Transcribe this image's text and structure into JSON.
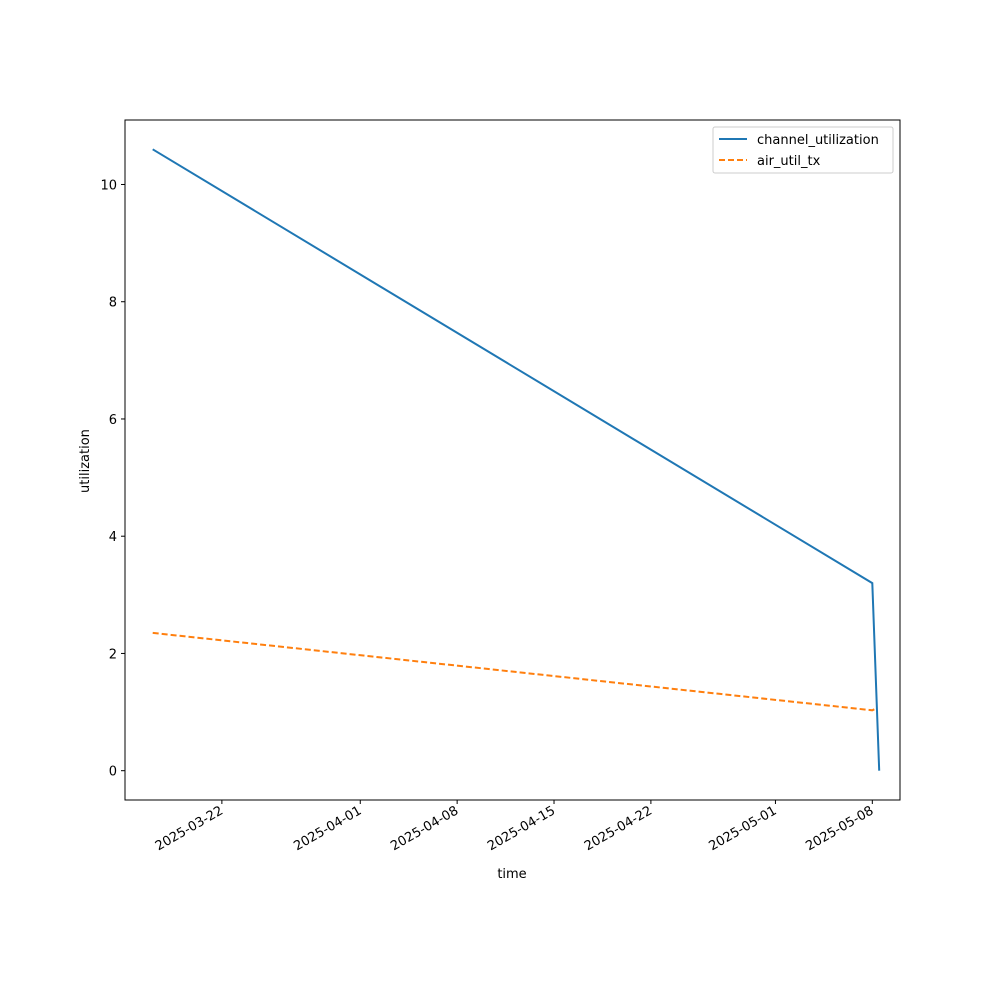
{
  "chart_data": {
    "type": "line",
    "title": "",
    "xlabel": "time",
    "ylabel": "utilization",
    "x_type": "date",
    "xlim": [
      "2025-03-15",
      "2025-05-10"
    ],
    "ylim": [
      -0.5,
      11.1
    ],
    "x_ticks": [
      "2025-03-22",
      "2025-04-01",
      "2025-04-08",
      "2025-04-15",
      "2025-04-22",
      "2025-05-01",
      "2025-05-08"
    ],
    "y_ticks": [
      0,
      2,
      4,
      6,
      8,
      10
    ],
    "grid": false,
    "legend_position": "top-right",
    "series": [
      {
        "name": "channel_utilization",
        "color": "#1f77b4",
        "style": "solid",
        "x": [
          "2025-03-17",
          "2025-05-08",
          "2025-05-08 12:00"
        ],
        "y": [
          10.6,
          3.2,
          0.0
        ]
      },
      {
        "name": "air_util_tx",
        "color": "#ff7f0e",
        "style": "dashed",
        "x": [
          "2025-03-17",
          "2025-05-08",
          "2025-05-08 06:00"
        ],
        "y": [
          2.35,
          1.03,
          1.06
        ]
      }
    ]
  }
}
